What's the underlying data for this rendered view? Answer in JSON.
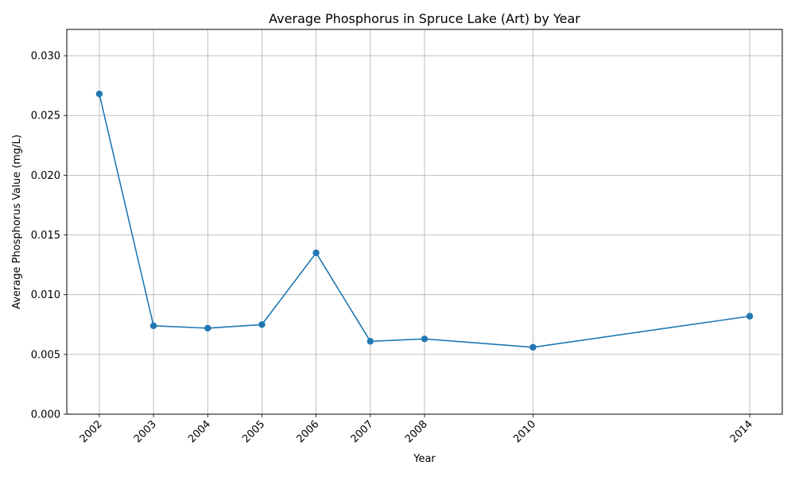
{
  "chart_data": {
    "type": "line",
    "title": "Average Phosphorus in Spruce Lake (Art) by Year",
    "xlabel": "Year",
    "ylabel": "Average Phosphorus Value (mg/L)",
    "x": [
      2002,
      2003,
      2004,
      2005,
      2006,
      2007,
      2008,
      2010,
      2014
    ],
    "x_tick_labels": [
      "2002",
      "2003",
      "2004",
      "2005",
      "2006",
      "2007",
      "2008",
      "2010",
      "2014"
    ],
    "series": [
      {
        "values": [
          0.0268,
          0.0074,
          0.0072,
          0.0075,
          0.0135,
          0.0061,
          0.0063,
          0.0056,
          0.0082
        ],
        "color": "#1f77b4",
        "marker": "circle"
      }
    ],
    "y_ticks": [
      0.0,
      0.005,
      0.01,
      0.015,
      0.02,
      0.025,
      0.03
    ],
    "y_tick_labels": [
      "0.000",
      "0.005",
      "0.010",
      "0.015",
      "0.020",
      "0.025",
      "0.030"
    ],
    "xlim": [
      2001.4,
      2014.6
    ],
    "ylim": [
      0.0,
      0.0322
    ],
    "grid": true,
    "colors": {
      "line": "#1f77b4",
      "grid": "#b0b0b0",
      "axes": "#000000"
    }
  }
}
